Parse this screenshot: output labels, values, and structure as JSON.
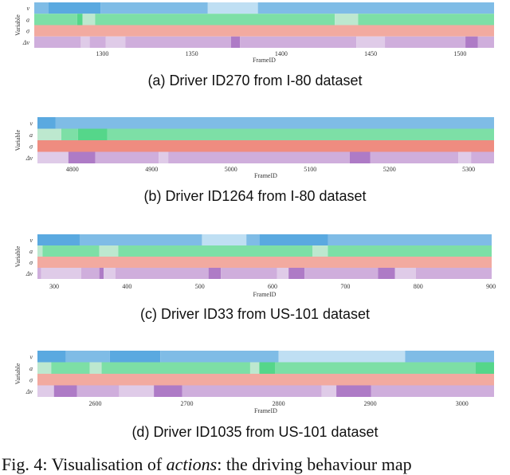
{
  "colors": {
    "v": [
      "#bfdff3",
      "#7fbce6",
      "#5aa9e0"
    ],
    "a": [
      "#bde8cf",
      "#7ddfa6",
      "#55d68a"
    ],
    "sigma": [
      "#f2aaa0",
      "#ef8c80"
    ],
    "dv": [
      "#dfcbe8",
      "#cfaedc",
      "#ae7bc6"
    ]
  },
  "chart_data": [
    {
      "type": "heatmap",
      "caption": "(a) Driver ID270 from I-80 dataset",
      "xlabel": "FrameID",
      "ylabel": "Variable",
      "rows": [
        "v",
        "a",
        "σ",
        "Δv"
      ],
      "xlim": [
        1262,
        1519
      ],
      "xticks": [
        1300,
        1350,
        1400,
        1450,
        1500
      ],
      "segments": {
        "v": [
          [
            1262,
            1270,
            1
          ],
          [
            1270,
            1299,
            2
          ],
          [
            1299,
            1359,
            1
          ],
          [
            1359,
            1387,
            0
          ],
          [
            1387,
            1519,
            1
          ]
        ],
        "a": [
          [
            1262,
            1286,
            1
          ],
          [
            1286,
            1289,
            2
          ],
          [
            1289,
            1296,
            0
          ],
          [
            1296,
            1430,
            1
          ],
          [
            1430,
            1443,
            0
          ],
          [
            1443,
            1519,
            1
          ]
        ],
        "σ": [
          [
            1262,
            1519,
            0
          ]
        ],
        "Δv": [
          [
            1262,
            1288,
            1
          ],
          [
            1288,
            1293,
            0
          ],
          [
            1293,
            1302,
            1
          ],
          [
            1302,
            1313,
            0
          ],
          [
            1313,
            1372,
            1
          ],
          [
            1372,
            1377,
            2
          ],
          [
            1377,
            1442,
            1
          ],
          [
            1442,
            1458,
            0
          ],
          [
            1458,
            1503,
            1
          ],
          [
            1503,
            1510,
            2
          ],
          [
            1510,
            1519,
            1
          ]
        ]
      }
    },
    {
      "type": "heatmap",
      "caption": "(b) Driver ID1264 from I-80 dataset",
      "xlabel": "FrameID",
      "ylabel": "Variable",
      "rows": [
        "v",
        "a",
        "σ",
        "Δv"
      ],
      "xlim": [
        4756,
        5332
      ],
      "xticks": [
        4800,
        4900,
        5000,
        5100,
        5200,
        5300
      ],
      "segments": {
        "v": [
          [
            4756,
            4779,
            2
          ],
          [
            4779,
            5332,
            1
          ]
        ],
        "a": [
          [
            4756,
            4786,
            0
          ],
          [
            4786,
            4807,
            1
          ],
          [
            4807,
            4844,
            2
          ],
          [
            4844,
            5332,
            1
          ]
        ],
        "σ": [
          [
            4756,
            5332,
            1
          ]
        ],
        "Δv": [
          [
            4756,
            4795,
            0
          ],
          [
            4795,
            4829,
            2
          ],
          [
            4829,
            4909,
            1
          ],
          [
            4909,
            4921,
            0
          ],
          [
            4921,
            5150,
            1
          ],
          [
            5150,
            5176,
            2
          ],
          [
            5176,
            5287,
            1
          ],
          [
            5287,
            5303,
            0
          ],
          [
            5303,
            5332,
            1
          ]
        ]
      }
    },
    {
      "type": "heatmap",
      "caption": "(c) Driver ID33 from US-101 dataset",
      "xlabel": "FrameID",
      "ylabel": "Variable",
      "rows": [
        "v",
        "a",
        "σ",
        "Δv"
      ],
      "xlim": [
        277,
        901
      ],
      "xticks": [
        300,
        400,
        500,
        600,
        700,
        800,
        900
      ],
      "segments": {
        "v": [
          [
            277,
            335,
            2
          ],
          [
            335,
            503,
            1
          ],
          [
            503,
            564,
            0
          ],
          [
            564,
            582,
            1
          ],
          [
            582,
            676,
            2
          ],
          [
            676,
            901,
            1
          ]
        ],
        "a": [
          [
            277,
            284,
            0
          ],
          [
            284,
            362,
            1
          ],
          [
            362,
            388,
            0
          ],
          [
            388,
            655,
            1
          ],
          [
            655,
            676,
            0
          ],
          [
            676,
            901,
            1
          ]
        ],
        "σ": [
          [
            277,
            901,
            0
          ]
        ],
        "Δv": [
          [
            277,
            282,
            1
          ],
          [
            282,
            337,
            0
          ],
          [
            337,
            362,
            1
          ],
          [
            362,
            368,
            2
          ],
          [
            368,
            384,
            0
          ],
          [
            384,
            512,
            1
          ],
          [
            512,
            529,
            2
          ],
          [
            529,
            606,
            1
          ],
          [
            606,
            622,
            0
          ],
          [
            622,
            644,
            2
          ],
          [
            644,
            745,
            1
          ],
          [
            745,
            768,
            2
          ],
          [
            768,
            797,
            0
          ],
          [
            797,
            901,
            1
          ]
        ]
      }
    },
    {
      "type": "heatmap",
      "caption": "(d) Driver ID1035 from US-101 dataset",
      "xlabel": "FrameID",
      "ylabel": "Variable",
      "rows": [
        "v",
        "a",
        "σ",
        "Δv"
      ],
      "xlim": [
        2537,
        3035
      ],
      "xticks": [
        2600,
        2700,
        2800,
        2900,
        3000
      ],
      "segments": {
        "v": [
          [
            2537,
            2568,
            2
          ],
          [
            2568,
            2616,
            1
          ],
          [
            2616,
            2671,
            2
          ],
          [
            2671,
            2800,
            1
          ],
          [
            2800,
            2938,
            0
          ],
          [
            2938,
            3035,
            1
          ]
        ],
        "a": [
          [
            2537,
            2552,
            0
          ],
          [
            2552,
            2594,
            1
          ],
          [
            2594,
            2607,
            0
          ],
          [
            2607,
            2769,
            1
          ],
          [
            2769,
            2779,
            0
          ],
          [
            2779,
            2796,
            2
          ],
          [
            2796,
            3015,
            1
          ],
          [
            3015,
            3035,
            2
          ]
        ],
        "σ": [
          [
            2537,
            3035,
            0
          ]
        ],
        "Δv": [
          [
            2537,
            2555,
            0
          ],
          [
            2555,
            2580,
            2
          ],
          [
            2580,
            2626,
            1
          ],
          [
            2626,
            2664,
            0
          ],
          [
            2664,
            2695,
            2
          ],
          [
            2695,
            2847,
            1
          ],
          [
            2847,
            2863,
            0
          ],
          [
            2863,
            2901,
            2
          ],
          [
            2901,
            3035,
            1
          ]
        ]
      }
    }
  ],
  "figure_caption": {
    "prefix": "Fig. 4: Visualisation of ",
    "emph": "actions",
    "suffix": ": the driving behaviour map"
  }
}
